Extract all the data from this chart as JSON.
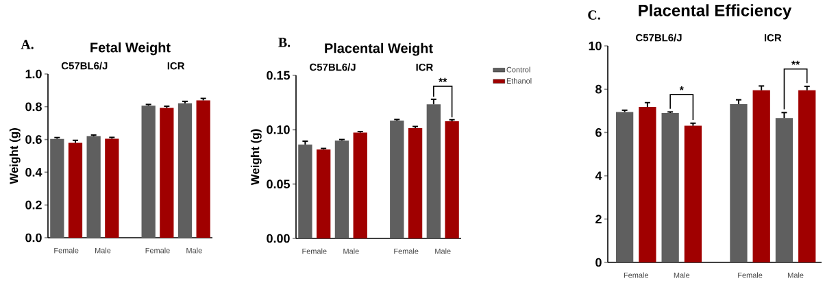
{
  "chart_data": [
    {
      "type": "bar",
      "title": "Fetal Weight",
      "ylabel": "Weight (g)",
      "categories": [
        "Female",
        "Male",
        "Female",
        "Male"
      ],
      "series": [
        {
          "color": "#5f5f5f",
          "values": [
            0.604,
            0.62,
            0.807,
            0.821
          ],
          "errors": [
            0.008,
            0.007,
            0.007,
            0.012
          ]
        },
        {
          "color": "#a00000",
          "values": [
            0.58,
            0.605,
            0.793,
            0.839
          ],
          "errors": [
            0.015,
            0.008,
            0.01,
            0.012
          ]
        }
      ],
      "ylim": [
        0,
        1.0
      ],
      "yticks": [
        {
          "value": 0,
          "label": "0.0"
        },
        {
          "value": 0.2,
          "label": "0.2"
        },
        {
          "value": 0.4,
          "label": "0.4"
        },
        {
          "value": 0.6,
          "label": "0.6"
        },
        {
          "value": 0.8,
          "label": "0.8"
        },
        {
          "value": 1.0,
          "label": "1.0"
        }
      ],
      "annotations": [
        "A.",
        "C57BL6/J",
        "ICR"
      ]
    },
    {
      "type": "bar",
      "title": "Placental Weight",
      "ylabel": "Weight (g)",
      "categories": [
        "Female",
        "Male",
        "Female",
        "Male"
      ],
      "series": [
        {
          "name": "Control",
          "color": "#5f5f5f",
          "values": [
            0.0864,
            0.09,
            0.1084,
            0.1234
          ],
          "errors": [
            0.003,
            0.001,
            0.001,
            0.0046
          ]
        },
        {
          "name": "Ethanol",
          "color": "#a00000",
          "values": [
            0.0818,
            0.0973,
            0.1015,
            0.1077
          ],
          "errors": [
            0.001,
            0.001,
            0.0015,
            0.0015
          ]
        }
      ],
      "ylim": [
        0,
        0.15
      ],
      "yticks": [
        {
          "value": 0,
          "label": "0.00"
        },
        {
          "value": 0.05,
          "label": "0.05"
        },
        {
          "value": 0.1,
          "label": "0.10"
        },
        {
          "value": 0.15,
          "label": "0.15"
        }
      ],
      "legend": "right",
      "annotations": [
        "B.",
        "C57BL6/J",
        "ICR",
        "**"
      ]
    },
    {
      "type": "bar",
      "title": "Placental Efficiency",
      "categories": [
        "Female",
        "Male",
        "Female",
        "Male"
      ],
      "series": [
        {
          "color": "#5f5f5f",
          "values": [
            6.95,
            6.9,
            7.31,
            6.67
          ],
          "errors": [
            0.08,
            0.05,
            0.2,
            0.25
          ]
        },
        {
          "color": "#a00000",
          "values": [
            7.18,
            6.31,
            7.95,
            7.95
          ],
          "errors": [
            0.2,
            0.12,
            0.2,
            0.18
          ]
        }
      ],
      "ylim": [
        0,
        10
      ],
      "yticks": [
        0,
        2,
        4,
        6,
        8,
        10
      ],
      "annotations": [
        "C.",
        "C57BL6/J",
        "ICR",
        "*",
        "**"
      ]
    }
  ]
}
